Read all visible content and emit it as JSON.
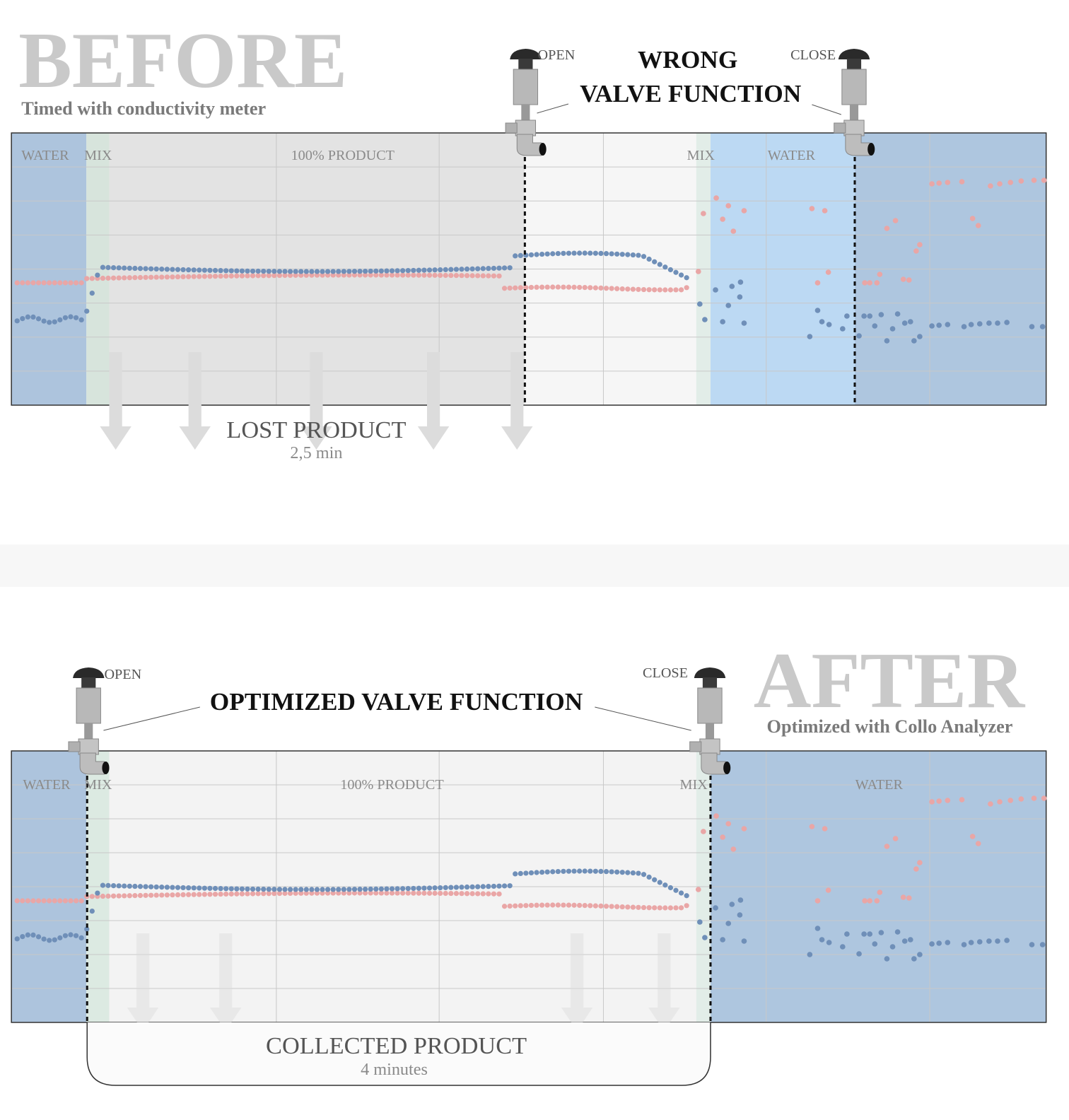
{
  "before": {
    "title": "BEFORE",
    "subtitle": "Timed with conductivity meter",
    "valve_open": "OPEN",
    "valve_close": "CLOSE",
    "callout": [
      "WRONG",
      "VALVE FUNCTION"
    ],
    "zones": [
      "WATER",
      "MIX",
      "100% PRODUCT",
      "MIX",
      "WATER"
    ],
    "result": {
      "label": "LOST PRODUCT",
      "duration": "2,5 min"
    }
  },
  "after": {
    "title": "AFTER",
    "subtitle": "Optimized with Collo Analyzer",
    "valve_open": "OPEN",
    "valve_close": "CLOSE",
    "callout": "OPTIMIZED VALVE FUNCTION",
    "zones": [
      "WATER",
      "MIX",
      "100% PRODUCT",
      "MIX",
      "WATER"
    ],
    "result": {
      "label": "COLLECTED PRODUCT",
      "duration": "4 minutes"
    }
  }
}
